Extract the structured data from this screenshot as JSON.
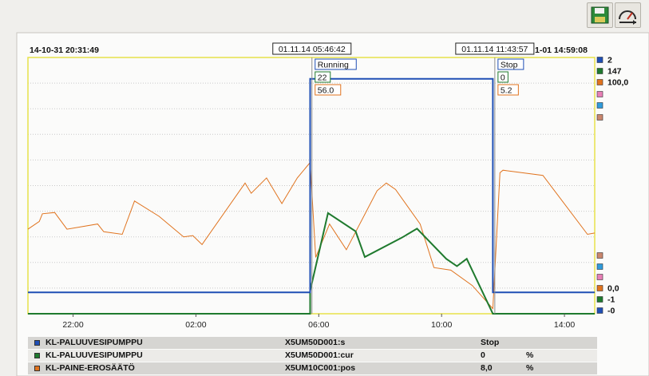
{
  "toolbar": {
    "buttons": [
      {
        "name": "save-button",
        "icon": "floppy-disk-icon"
      },
      {
        "name": "timescale-button",
        "icon": "gauge-arrow-icon"
      }
    ]
  },
  "chart_data": {
    "type": "line",
    "x_range": [
      "14-10-31 20:31:49",
      "14-11-01 14:59:08"
    ],
    "start_label": "14-10-31 20:31:49",
    "end_label": "1-01 14:59:08",
    "x_tick_labels": [
      "22:00",
      "02:00",
      "06:00",
      "10:00",
      "14:00"
    ],
    "x_ticks_hours": [
      22,
      26,
      30,
      34,
      38
    ],
    "x_start_hours": 20.53,
    "x_end_hours": 38.986,
    "cursors": [
      {
        "label": "01.11.14 05:46:42",
        "time_hours": 29.778,
        "values": [
          "Running",
          "22",
          "56.0"
        ]
      },
      {
        "label": "01.11.14 11:43:57",
        "time_hours": 35.733,
        "values": [
          "Stop",
          "0",
          "5.2"
        ]
      }
    ],
    "grid": true,
    "series": [
      {
        "name": "KL-PALUUVESIPUMPPU",
        "signal": "X5UM50D001:s",
        "value": "Stop",
        "unit": "",
        "color": "#1f4fb5",
        "y_range": [
          -0.1,
          1.1
        ],
        "y_top_label": "2",
        "y_bottom_label": "-0",
        "points": [
          [
            20.53,
            0
          ],
          [
            29.72,
            0
          ],
          [
            29.72,
            1
          ],
          [
            35.67,
            1
          ],
          [
            35.67,
            0
          ],
          [
            38.986,
            0
          ]
        ]
      },
      {
        "name": "KL-PALUUVESIPUMPPU",
        "signal": "X5UM50D001:cur",
        "value": "0",
        "unit": "%",
        "color": "#1f7a2e",
        "y_range": [
          -1,
          27
        ],
        "y_top_label": "147",
        "y_bottom_label": "-1",
        "points": [
          [
            20.53,
            -1
          ],
          [
            29.72,
            -1
          ],
          [
            29.72,
            1.5
          ],
          [
            30.3,
            10
          ],
          [
            31.2,
            8
          ],
          [
            31.5,
            5.2
          ],
          [
            32.7,
            7.3
          ],
          [
            33.2,
            8.3
          ],
          [
            34.15,
            5
          ],
          [
            34.5,
            4.2
          ],
          [
            34.82,
            5
          ],
          [
            35.67,
            -1
          ],
          [
            38.986,
            -1
          ]
        ]
      },
      {
        "name": "KL-PAINE-EROSÄÄTÖ",
        "signal": "X5UM10C001:pos",
        "value": "8,0",
        "unit": "%",
        "color": "#e0731e",
        "y_range": [
          0,
          100
        ],
        "y_top_label": "100,0",
        "y_bottom_label": "0,0",
        "points": [
          [
            20.53,
            33
          ],
          [
            20.9,
            36
          ],
          [
            21.0,
            39
          ],
          [
            21.4,
            39.5
          ],
          [
            21.8,
            33
          ],
          [
            22.8,
            35
          ],
          [
            23.0,
            32
          ],
          [
            23.6,
            31
          ],
          [
            24.0,
            44
          ],
          [
            24.8,
            38
          ],
          [
            25.6,
            30
          ],
          [
            25.9,
            30.5
          ],
          [
            26.2,
            27
          ],
          [
            27.6,
            51
          ],
          [
            27.8,
            47
          ],
          [
            28.3,
            53
          ],
          [
            28.8,
            43
          ],
          [
            29.3,
            53
          ],
          [
            29.72,
            59
          ],
          [
            29.9,
            22
          ],
          [
            30.35,
            35
          ],
          [
            30.9,
            25
          ],
          [
            31.9,
            48
          ],
          [
            32.2,
            51
          ],
          [
            32.5,
            48.5
          ],
          [
            33.3,
            35
          ],
          [
            33.75,
            18
          ],
          [
            34.3,
            17
          ],
          [
            35.0,
            11
          ],
          [
            35.67,
            2
          ],
          [
            35.9,
            55
          ],
          [
            36.0,
            56
          ],
          [
            37.3,
            54
          ],
          [
            38.75,
            31
          ],
          [
            38.986,
            31.5
          ]
        ]
      }
    ],
    "right_markers": [
      {
        "label": "2",
        "color": "#1f4fb5"
      },
      {
        "label": "147",
        "color": "#1f7a2e"
      },
      {
        "label": "100,0",
        "color": "#e0731e"
      },
      {
        "label": "",
        "color": "#e77fb5"
      },
      {
        "label": "",
        "color": "#2f9bdb"
      },
      {
        "label": "",
        "color": "#c9866d"
      },
      {
        "label": "",
        "color": "#c9866d"
      },
      {
        "label": "",
        "color": "#2f9bdb"
      },
      {
        "label": "",
        "color": "#e77fb5"
      },
      {
        "label": "0,0",
        "color": "#e0731e"
      },
      {
        "label": "-1",
        "color": "#1f7a2e"
      },
      {
        "label": "-0",
        "color": "#1f4fb5"
      }
    ]
  }
}
